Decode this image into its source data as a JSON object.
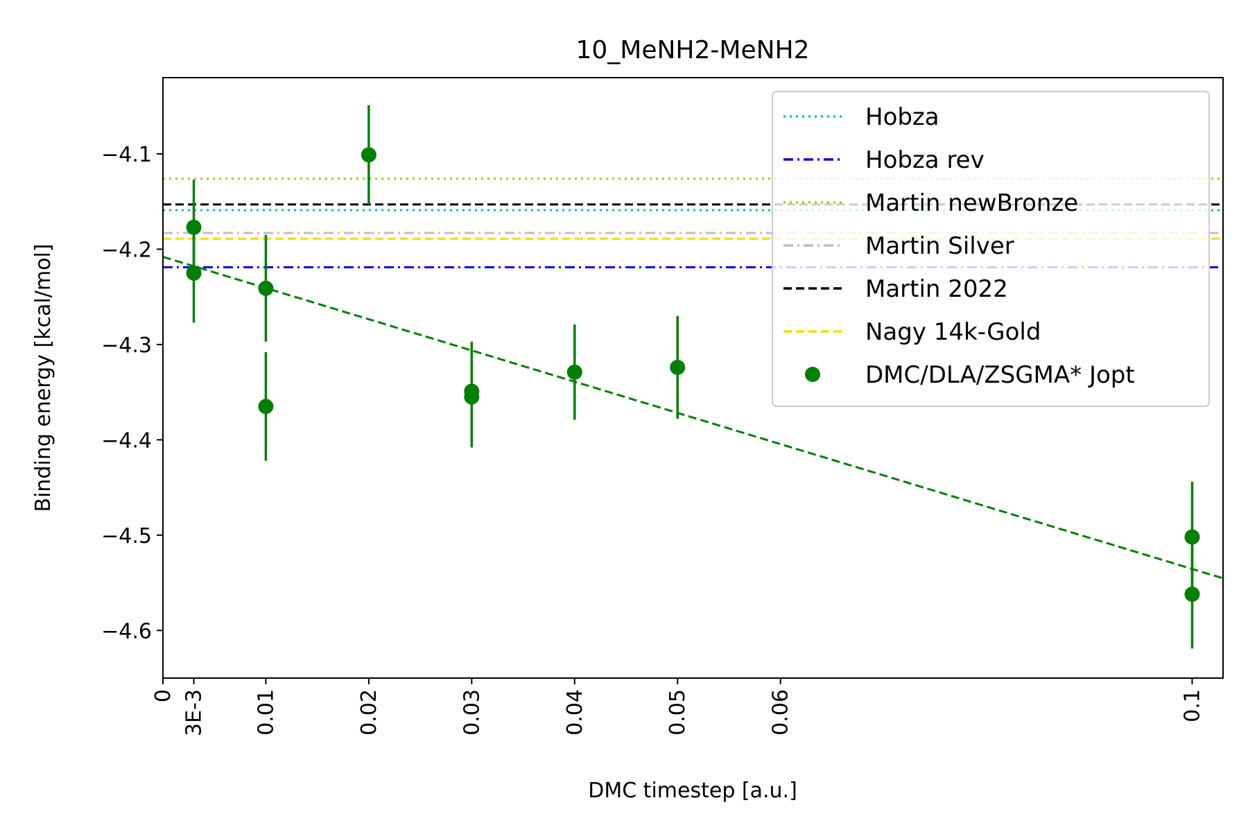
{
  "chart_data": {
    "type": "scatter",
    "title": "10_MeNH2-MeNH2",
    "xlabel": "DMC timestep [a.u.]",
    "ylabel": "Binding energy [kcal/mol]",
    "xlim": [
      0,
      0.103
    ],
    "ylim": [
      -4.65,
      -4.02
    ],
    "xticks": [
      {
        "value": 0,
        "label": "0"
      },
      {
        "value": 0.003,
        "label": "3E-3"
      },
      {
        "value": 0.01,
        "label": "0.01"
      },
      {
        "value": 0.02,
        "label": "0.02"
      },
      {
        "value": 0.03,
        "label": "0.03"
      },
      {
        "value": 0.04,
        "label": "0.04"
      },
      {
        "value": 0.05,
        "label": "0.05"
      },
      {
        "value": 0.06,
        "label": "0.06"
      },
      {
        "value": 0.1,
        "label": "0.1"
      }
    ],
    "yticks": [
      {
        "value": -4.1,
        "label": "−4.1"
      },
      {
        "value": -4.2,
        "label": "−4.2"
      },
      {
        "value": -4.3,
        "label": "−4.3"
      },
      {
        "value": -4.4,
        "label": "−4.4"
      },
      {
        "value": -4.5,
        "label": "−4.5"
      },
      {
        "value": -4.6,
        "label": "−4.6"
      }
    ],
    "legend_position": "top-right",
    "reference_lines": [
      {
        "name": "Hobza",
        "value": -4.159,
        "color": "#00bfbf",
        "style": "dotted"
      },
      {
        "name": "Hobza rev",
        "value": -4.219,
        "color": "#0000ff",
        "style": "dashdot"
      },
      {
        "name": "Martin newBronze",
        "value": -4.126,
        "color": "#bfbf00",
        "style": "dotted"
      },
      {
        "name": "Martin Silver",
        "value": -4.183,
        "color": "#bfbfbf",
        "style": "dashdot"
      },
      {
        "name": "Martin 2022",
        "value": -4.153,
        "color": "#000000",
        "style": "dashed"
      },
      {
        "name": "Nagy 14k-Gold",
        "value": -4.189,
        "color": "#ffd700",
        "style": "dashed"
      }
    ],
    "series": [
      {
        "name": "DMC/DLA/ZSGMA* Jopt",
        "color": "#008000",
        "points": [
          {
            "x": 0.003,
            "y": -4.177,
            "err": 0.05
          },
          {
            "x": 0.003,
            "y": -4.225,
            "err": 0.052
          },
          {
            "x": 0.01,
            "y": -4.241,
            "err": 0.056
          },
          {
            "x": 0.01,
            "y": -4.365,
            "err": 0.057
          },
          {
            "x": 0.02,
            "y": -4.101,
            "err": 0.052
          },
          {
            "x": 0.03,
            "y": -4.349,
            "err": 0.052
          },
          {
            "x": 0.03,
            "y": -4.355,
            "err": 0.053
          },
          {
            "x": 0.04,
            "y": -4.329,
            "err": 0.05
          },
          {
            "x": 0.05,
            "y": -4.324,
            "err": 0.054
          },
          {
            "x": 0.1,
            "y": -4.502,
            "err": 0.058
          },
          {
            "x": 0.1,
            "y": -4.562,
            "err": 0.057
          }
        ]
      }
    ],
    "fit_line": {
      "color": "#008000",
      "style": "dashed",
      "intercept": -4.208,
      "slope": -3.275
    }
  }
}
